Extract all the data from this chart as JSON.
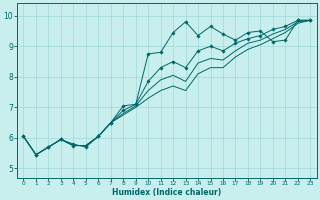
{
  "xlabel": "Humidex (Indice chaleur)",
  "bg_color": "#c8eeee",
  "grid_color": "#a0d8d8",
  "line_color": "#006868",
  "xlim": [
    -0.5,
    23.5
  ],
  "ylim": [
    4.7,
    10.4
  ],
  "xticks": [
    0,
    1,
    2,
    3,
    4,
    5,
    6,
    7,
    8,
    9,
    10,
    11,
    12,
    13,
    14,
    15,
    16,
    17,
    18,
    19,
    20,
    21,
    22,
    23
  ],
  "yticks": [
    5,
    6,
    7,
    8,
    9,
    10
  ],
  "s1_y": [
    6.05,
    5.45,
    5.7,
    5.95,
    5.8,
    5.7,
    6.05,
    6.5,
    7.05,
    7.1,
    8.75,
    8.8,
    9.45,
    9.8,
    9.35,
    9.65,
    9.4,
    9.2,
    9.45,
    9.5,
    9.15,
    9.2,
    9.85,
    9.85
  ],
  "s2_y": [
    6.05,
    5.45,
    5.7,
    5.95,
    5.75,
    5.75,
    6.05,
    6.5,
    6.9,
    7.1,
    7.85,
    8.3,
    8.5,
    8.3,
    8.85,
    9.0,
    8.85,
    9.1,
    9.25,
    9.35,
    9.55,
    9.65,
    9.85,
    9.85
  ],
  "s3_y": [
    6.05,
    5.45,
    5.7,
    5.95,
    5.75,
    5.75,
    6.05,
    6.5,
    6.8,
    7.05,
    7.55,
    7.9,
    8.05,
    7.85,
    8.45,
    8.6,
    8.55,
    8.85,
    9.1,
    9.2,
    9.4,
    9.55,
    9.8,
    9.85
  ],
  "s4_y": [
    6.05,
    5.45,
    5.7,
    5.95,
    5.75,
    5.75,
    6.05,
    6.5,
    6.75,
    7.0,
    7.3,
    7.55,
    7.7,
    7.55,
    8.1,
    8.3,
    8.3,
    8.65,
    8.9,
    9.05,
    9.25,
    9.45,
    9.75,
    9.85
  ]
}
